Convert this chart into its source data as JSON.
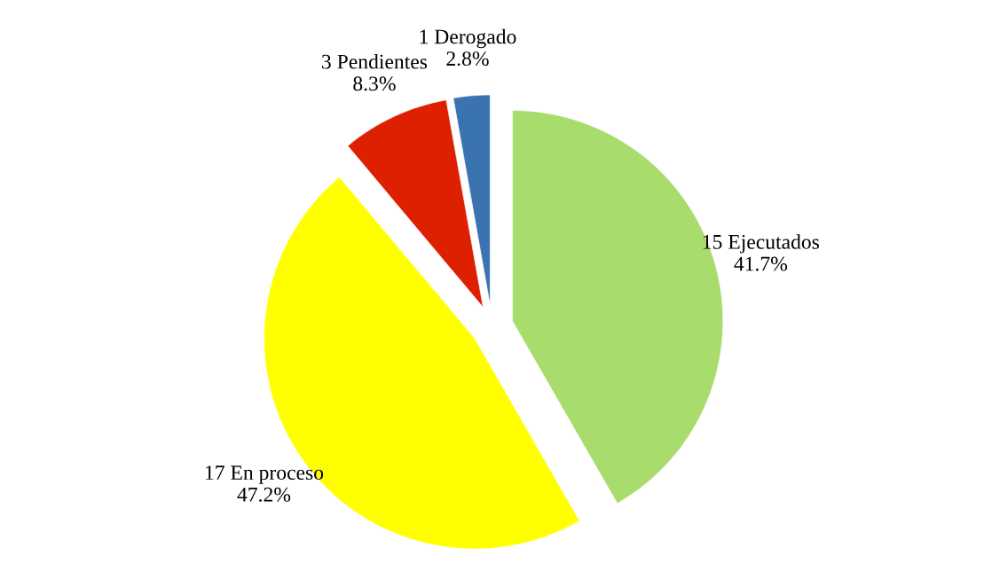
{
  "chart_data": {
    "type": "pie",
    "categories": [
      "15 Ejecutados",
      "17 En proceso",
      "3 Pendientes",
      "1 Derogado"
    ],
    "values": [
      41.7,
      47.2,
      8.3,
      2.8
    ],
    "colors": [
      "#a8dc6c",
      "#ffff00",
      "#dd2000",
      "#3b72b0"
    ],
    "value_labels": [
      "41.7%",
      "47.2%",
      "8.3%",
      "2.8%"
    ],
    "legend": false
  }
}
